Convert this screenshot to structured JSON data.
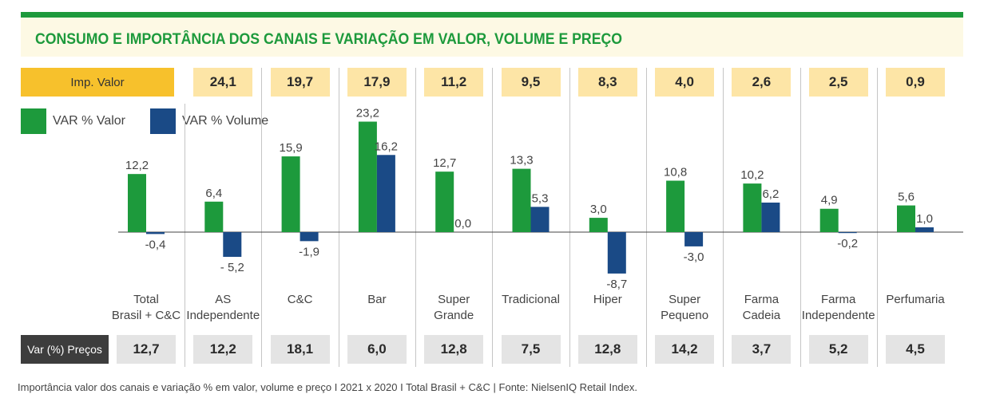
{
  "title": "CONSUMO E IMPORTÂNCIA DOS CANAIS E VARIAÇÃO EM VALOR, VOLUME E PREÇO",
  "imp_label": "Imp. Valor",
  "var_label": "Var (%) Preços",
  "footnote": "Importância valor dos canais e variação % em valor, volume e preço I 2021 x 2020 I Total Brasil + C&C | Fonte: NielsenIQ Retail Index.",
  "colors": {
    "valor": "#1d9a3c",
    "volume": "#1a4a86",
    "imp_label_bg": "#f7c12c",
    "imp_box_bg": "#fde5a6",
    "var_label_bg": "#3d3d3d",
    "var_box_bg": "#e4e4e4",
    "title": "#1d9a3c"
  },
  "chart_data": {
    "type": "bar",
    "legend_position": "top-left",
    "categories": [
      {
        "line1": "Total",
        "line2": "Brasil + C&C"
      },
      {
        "line1": "AS",
        "line2": "Independente"
      },
      {
        "line1": "C&C",
        "line2": ""
      },
      {
        "line1": "Bar",
        "line2": ""
      },
      {
        "line1": "Super",
        "line2": "Grande"
      },
      {
        "line1": "Tradicional",
        "line2": ""
      },
      {
        "line1": "Hiper",
        "line2": ""
      },
      {
        "line1": "Super",
        "line2": "Pequeno"
      },
      {
        "line1": "Farma",
        "line2": "Cadeia"
      },
      {
        "line1": "Farma",
        "line2": "Independente"
      },
      {
        "line1": "Perfumaria",
        "line2": ""
      }
    ],
    "series": [
      {
        "name": "VAR % Valor",
        "values": [
          12.2,
          6.4,
          15.9,
          23.2,
          12.7,
          13.3,
          3.0,
          10.8,
          10.2,
          4.9,
          5.6
        ],
        "labels": [
          "12,2",
          "6,4",
          "15,9",
          "23,2",
          "12,7",
          "13,3",
          "3,0",
          "10,8",
          "10,2",
          "4,9",
          "5,6"
        ]
      },
      {
        "name": "VAR % Volume",
        "values": [
          -0.4,
          -5.2,
          -1.9,
          16.2,
          0.0,
          5.3,
          -8.7,
          -3.0,
          6.2,
          -0.2,
          1.0
        ],
        "labels": [
          "-0,4",
          "- 5,2",
          "-1,9",
          "16,2",
          "0,0",
          "5,3",
          "-8,7",
          "-3,0",
          "6,2",
          "-0,2",
          "1,0"
        ]
      }
    ],
    "imp_valor": [
      null,
      "24,1",
      "19,7",
      "17,9",
      "11,2",
      "9,5",
      "8,3",
      "4,0",
      "2,6",
      "2,5",
      "0,9"
    ],
    "var_precos": [
      "12,7",
      "12,2",
      "18,1",
      "6,0",
      "12,8",
      "7,5",
      "12,8",
      "14,2",
      "3,7",
      "5,2",
      "4,5"
    ]
  }
}
